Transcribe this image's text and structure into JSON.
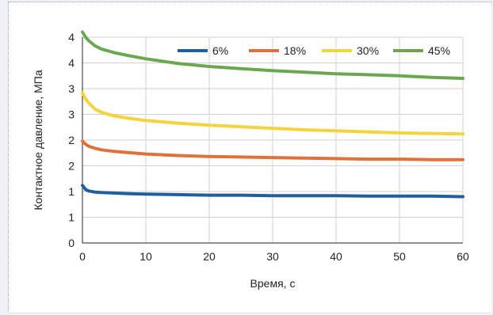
{
  "chart_data": {
    "type": "line",
    "title": "",
    "xlabel": "Время, с",
    "ylabel": "Контактное давление, МПа",
    "xlim": [
      0,
      60
    ],
    "ylim": [
      0,
      4
    ],
    "xticks": [
      "0",
      "10",
      "20",
      "30",
      "40",
      "50",
      "60"
    ],
    "yticks": [
      "0",
      "1",
      "1",
      "2",
      "2",
      "3",
      "3",
      "4",
      "4"
    ],
    "grid": true,
    "legend_position": "top-right",
    "x": [
      0,
      0.5,
      1,
      2,
      3,
      5,
      7,
      10,
      15,
      20,
      25,
      30,
      35,
      40,
      45,
      50,
      55,
      60
    ],
    "series": [
      {
        "name": "6%",
        "color": "#1f5fa0",
        "values": [
          1.12,
          1.04,
          1.01,
          0.99,
          0.98,
          0.97,
          0.96,
          0.95,
          0.94,
          0.93,
          0.93,
          0.92,
          0.92,
          0.92,
          0.91,
          0.91,
          0.91,
          0.9
        ]
      },
      {
        "name": "18%",
        "color": "#e2703a",
        "values": [
          1.98,
          1.92,
          1.88,
          1.84,
          1.81,
          1.78,
          1.76,
          1.73,
          1.7,
          1.68,
          1.67,
          1.66,
          1.65,
          1.64,
          1.63,
          1.63,
          1.62,
          1.62
        ]
      },
      {
        "name": "30%",
        "color": "#f5d33d",
        "values": [
          2.92,
          2.8,
          2.72,
          2.6,
          2.54,
          2.47,
          2.43,
          2.38,
          2.33,
          2.29,
          2.26,
          2.23,
          2.2,
          2.18,
          2.16,
          2.14,
          2.13,
          2.12
        ]
      },
      {
        "name": "45%",
        "color": "#6aa84f",
        "values": [
          4.1,
          4.0,
          3.93,
          3.83,
          3.77,
          3.7,
          3.65,
          3.58,
          3.49,
          3.43,
          3.39,
          3.35,
          3.32,
          3.29,
          3.27,
          3.25,
          3.22,
          3.2
        ]
      }
    ]
  }
}
